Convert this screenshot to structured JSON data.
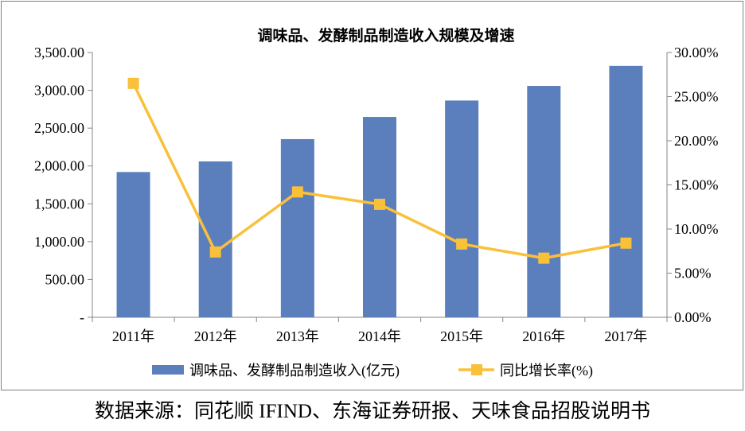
{
  "chart_data": {
    "type": "bar+line",
    "title": "调味品、发酵制品制造收入规模及增速",
    "categories": [
      "2011年",
      "2012年",
      "2013年",
      "2014年",
      "2015年",
      "2016年",
      "2017年"
    ],
    "series": [
      {
        "name": "调味品、发酵制品制造收入(亿元)",
        "type": "bar",
        "axis": "left",
        "color": "#5b7fbd",
        "values": [
          1920,
          2060,
          2355,
          2648,
          2865,
          3058,
          3323
        ]
      },
      {
        "name": "同比增长率(%)",
        "type": "line",
        "axis": "right",
        "color": "#f9c03a",
        "values": [
          26.5,
          7.4,
          14.2,
          12.8,
          8.3,
          6.7,
          8.4
        ]
      }
    ],
    "y_left": {
      "ylim": [
        0,
        3500
      ],
      "ticks": [
        "-",
        "500.00",
        "1,000.00",
        "1,500.00",
        "2,000.00",
        "2,500.00",
        "3,000.00",
        "3,500.00"
      ]
    },
    "y_right": {
      "ylim": [
        0,
        30
      ],
      "ticks": [
        "0.00%",
        "5.00%",
        "10.00%",
        "15.00%",
        "20.00%",
        "25.00%",
        "30.00%"
      ]
    },
    "grid": false,
    "legend_position": "bottom"
  },
  "source_note": "数据来源：同花顺 IFIND、东海证券研报、天味食品招股说明书"
}
